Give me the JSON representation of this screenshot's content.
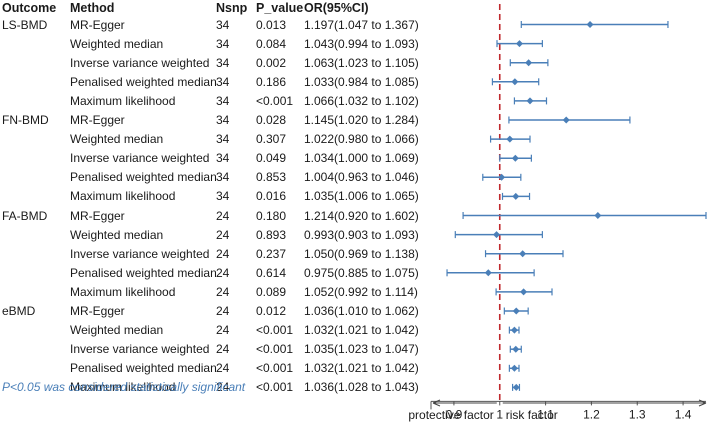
{
  "chart_data": {
    "type": "forest",
    "headers": {
      "outcome": "Outcome",
      "method": "Method",
      "nsnp": "Nsnp",
      "p_value": "P_value",
      "or_ci": "OR(95%CI)"
    },
    "rows": [
      {
        "outcome": "LS-BMD",
        "method": "MR-Egger",
        "nsnp": "34",
        "p": "0.013",
        "or_text": "1.197(1.047 to 1.367)",
        "or": 1.197,
        "lo": 1.047,
        "hi": 1.367
      },
      {
        "outcome": "",
        "method": "Weighted median",
        "nsnp": "34",
        "p": "0.084",
        "or_text": "1.043(0.994 to 1.093)",
        "or": 1.043,
        "lo": 0.994,
        "hi": 1.093
      },
      {
        "outcome": "",
        "method": "Inverse variance weighted",
        "nsnp": "34",
        "p": "0.002",
        "or_text": "1.063(1.023 to 1.105)",
        "or": 1.063,
        "lo": 1.023,
        "hi": 1.105
      },
      {
        "outcome": "",
        "method": "Penalised weighted median",
        "nsnp": "34",
        "p": "0.186",
        "or_text": "1.033(0.984 to 1.085)",
        "or": 1.033,
        "lo": 0.984,
        "hi": 1.085
      },
      {
        "outcome": "",
        "method": "Maximum likelihood",
        "nsnp": "34",
        "p": "<0.001",
        "or_text": "1.066(1.032 to 1.102)",
        "or": 1.066,
        "lo": 1.032,
        "hi": 1.102
      },
      {
        "outcome": "FN-BMD",
        "method": "MR-Egger",
        "nsnp": "34",
        "p": "0.028",
        "or_text": "1.145(1.020 to 1.284)",
        "or": 1.145,
        "lo": 1.02,
        "hi": 1.284
      },
      {
        "outcome": "",
        "method": "Weighted median",
        "nsnp": "34",
        "p": "0.307",
        "or_text": "1.022(0.980 to 1.066)",
        "or": 1.022,
        "lo": 0.98,
        "hi": 1.066
      },
      {
        "outcome": "",
        "method": "Inverse variance weighted",
        "nsnp": "34",
        "p": "0.049",
        "or_text": "1.034(1.000 to 1.069)",
        "or": 1.034,
        "lo": 1.0,
        "hi": 1.069
      },
      {
        "outcome": "",
        "method": "Penalised weighted median",
        "nsnp": "34",
        "p": "0.853",
        "or_text": "1.004(0.963 to 1.046)",
        "or": 1.004,
        "lo": 0.963,
        "hi": 1.046
      },
      {
        "outcome": "",
        "method": "Maximum likelihood",
        "nsnp": "34",
        "p": "0.016",
        "or_text": "1.035(1.006 to 1.065)",
        "or": 1.035,
        "lo": 1.006,
        "hi": 1.065
      },
      {
        "outcome": "FA-BMD",
        "method": "MR-Egger",
        "nsnp": "24",
        "p": "0.180",
        "or_text": "1.214(0.920 to 1.602)",
        "or": 1.214,
        "lo": 0.92,
        "hi": 1.602
      },
      {
        "outcome": "",
        "method": "Weighted median",
        "nsnp": "24",
        "p": "0.893",
        "or_text": "0.993(0.903 to 1.093)",
        "or": 0.993,
        "lo": 0.903,
        "hi": 1.093
      },
      {
        "outcome": "",
        "method": "Inverse variance weighted",
        "nsnp": "24",
        "p": "0.237",
        "or_text": "1.050(0.969 to 1.138)",
        "or": 1.05,
        "lo": 0.969,
        "hi": 1.138
      },
      {
        "outcome": "",
        "method": "Penalised weighted median",
        "nsnp": "24",
        "p": "0.614",
        "or_text": "0.975(0.885 to 1.075)",
        "or": 0.975,
        "lo": 0.885,
        "hi": 1.075
      },
      {
        "outcome": "",
        "method": "Maximum likelihood",
        "nsnp": "24",
        "p": "0.089",
        "or_text": "1.052(0.992 to 1.114)",
        "or": 1.052,
        "lo": 0.992,
        "hi": 1.114
      },
      {
        "outcome": "eBMD",
        "method": "MR-Egger",
        "nsnp": "24",
        "p": "0.012",
        "or_text": "1.036(1.010 to 1.062)",
        "or": 1.036,
        "lo": 1.01,
        "hi": 1.062
      },
      {
        "outcome": "",
        "method": "Weighted median",
        "nsnp": "24",
        "p": "<0.001",
        "or_text": "1.032(1.021 to 1.042)",
        "or": 1.032,
        "lo": 1.021,
        "hi": 1.042
      },
      {
        "outcome": "",
        "method": "Inverse variance weighted",
        "nsnp": "24",
        "p": "<0.001",
        "or_text": "1.035(1.023 to 1.047)",
        "or": 1.035,
        "lo": 1.023,
        "hi": 1.047
      },
      {
        "outcome": "",
        "method": "Penalised weighted median",
        "nsnp": "24",
        "p": "<0.001",
        "or_text": "1.032(1.021 to 1.042)",
        "or": 1.032,
        "lo": 1.021,
        "hi": 1.042
      },
      {
        "outcome": "",
        "method": "Maximum likelihood",
        "nsnp": "24",
        "p": "<0.001",
        "or_text": "1.036(1.028 to 1.043)",
        "or": 1.036,
        "lo": 1.028,
        "hi": 1.043
      }
    ],
    "x_axis": {
      "ticks": [
        0.9,
        1.0,
        1.1,
        1.2,
        1.3,
        1.4
      ],
      "tick_labels": [
        "0.9",
        "1",
        "1.1",
        "1.2",
        "1.3",
        "1.4"
      ],
      "xlim": [
        0.85,
        1.45
      ],
      "reference": 1.0
    },
    "direction_labels": {
      "left": "protective factor",
      "right": "risk factor"
    },
    "footnote": "P<0.05 was considered statistically significant",
    "colors": {
      "ci": "#4a7fb8",
      "reference_line": "#c0282d",
      "text": "#1a1a1a",
      "footnote": "#4a7fb8"
    }
  }
}
